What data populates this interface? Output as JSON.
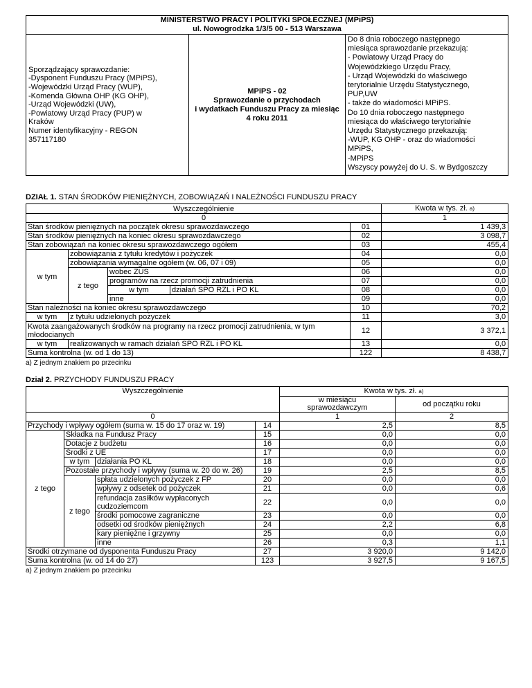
{
  "header_table": {
    "ministry": "MINISTERSTWO PRACY I POLITYKI SPOŁECZNEJ (MPiPS)\nul. Nowogrodzka 1/3/5 00 - 513 Warszawa",
    "preparers": "Sporządzający sprawozdanie:\n-Dysponent Funduszu Pracy (MPiPS),\n-Wojewódzki Urząd Pracy (WUP),\n-Komenda Główna OHP (KG OHP),\n-Urząd Wojewódzki (UW),\n-Powiatowy Urząd Pracy (PUP) w\nKraków\nNumer identyfikacyjny - REGON\n357117180",
    "form_title": "MPiPS - 02\nSprawozdanie o przychodach\ni wydatkach Funduszu Pracy za miesiąc\n4 roku 2011",
    "submission_info": "Do 8 dnia roboczego następnego\nmiesiąca sprawozdanie przekazują:\n- Powiatowy Urząd Pracy do\nWojewódzkiego Urzędu Pracy,\n- Urząd Wojewódzki do właściwego\nterytorialnie Urzędu Statystycznego,\nPUP,UW\n- także do wiadomości MPiPS.\nDo 10 dnia roboczego następnego\nmiesiąca do właściwego terytorialnie\nUrzędu Statystycznego przekazują:\n-WUP, KG OHP - oraz do wiadomości\nMPiPS,\n-MPiPS\nWszyscy powyżej do U. S. w Bydgoszczy"
  },
  "dzial1": {
    "title_prefix": "DZIAŁ 1.",
    "title_rest": " STAN ŚRODKÓW PIENIĘŻNYCH, ZOBOWIĄZAŃ I NALEŻNOŚCI FUNDUSZU PRACY",
    "col_header": "Wyszczególnienie",
    "kwota_header": "Kwota w tys. zł. ",
    "footnote_marker": "a)",
    "col0": "0",
    "col1": "1",
    "w_tym_1": "w tym",
    "z_tego_1": "z tego",
    "w_tym_2": "w tym",
    "w_tym_3": "w tym",
    "w_tym_4": "w tym",
    "footnote": "a) Z jednym znakiem po przecinku",
    "rows": [
      {
        "label": "Stan środków pieniężnych na początek okresu sprawozdawczego",
        "num": "01",
        "val": "1 439,3"
      },
      {
        "label": "Stan środków pieniężnych na koniec okresu sprawozdawczego",
        "num": "02",
        "val": "3 098,7"
      },
      {
        "label": "Stan zobowiązań na koniec okresu sprawozdawczego ogółem",
        "num": "03",
        "val": "455,4"
      },
      {
        "label": "zobowiązania z tytułu kredytów i pożyczek",
        "num": "04",
        "val": "0,0"
      },
      {
        "label": "zobowiązania wymagalne ogółem (w. 06, 07 i 09)",
        "num": "05",
        "val": "0,0"
      },
      {
        "label": "wobec ZUS",
        "num": "06",
        "val": "0,0"
      },
      {
        "label": "programów na rzecz promocji zatrudnienia",
        "num": "07",
        "val": "0,0"
      },
      {
        "label": "działań SPO RZL i PO KL",
        "num": "08",
        "val": "0,0"
      },
      {
        "label": "inne",
        "num": "09",
        "val": "0,0"
      },
      {
        "label": "Stan należności na koniec okresu sprawozdawczego",
        "num": "10",
        "val": "70,2"
      },
      {
        "label": "z tytułu udzielonych pożyczek",
        "num": "11",
        "val": "3,0"
      },
      {
        "label": "Kwota zaangażowanych środków na programy na rzecz promocji zatrudnienia, w tym młodocianych",
        "num": "12",
        "val": "3 372,1"
      },
      {
        "label": "realizowanych w ramach działań SPO RZL i PO KL",
        "num": "13",
        "val": "0,0"
      },
      {
        "label": "Suma kontrolna (w. od 1 do 13)",
        "num": "122",
        "val": "8 438,7"
      }
    ]
  },
  "dzial2": {
    "title_prefix": "Dział 2.",
    "title_rest": " PRZYCHODY FUNDUSZU PRACY",
    "col_header": "Wyszczególnienie",
    "kwota_header": "Kwota w tys. zł. ",
    "footnote_marker": "a)",
    "sub_col1": "w miesiącu\nsprawozdawczym",
    "sub_col2": "od początku roku",
    "col0": "0",
    "col1": "1",
    "col2": "2",
    "z_tego_1": "z tego",
    "w_tym_1": "w tym",
    "z_tego_2": "z tego",
    "footnote": "a) Z jednym znakiem po przecinku",
    "rows": [
      {
        "label": "Przychody i wpływy ogółem (suma w. 15 do 17 oraz w. 19)",
        "num": "14",
        "val1": "2,5",
        "val2": "8,5"
      },
      {
        "label": "Składka na Fundusz Pracy",
        "num": "15",
        "val1": "0,0",
        "val2": "0,0"
      },
      {
        "label": "Dotacje z budżetu",
        "num": "16",
        "val1": "0,0",
        "val2": "0,0"
      },
      {
        "label": "Środki z UE",
        "num": "17",
        "val1": "0,0",
        "val2": "0,0"
      },
      {
        "label": "działania PO KL",
        "num": "18",
        "val1": "0,0",
        "val2": "0,0"
      },
      {
        "label": "Pozostałe przychody i wpływy (suma w. 20 do w. 26)",
        "num": "19",
        "val1": "2,5",
        "val2": "8,5"
      },
      {
        "label": "spłata udzielonych pożyczek z FP",
        "num": "20",
        "val1": "0,0",
        "val2": "0,0"
      },
      {
        "label": "wpływy z odsetek od pożyczek",
        "num": "21",
        "val1": "0,0",
        "val2": "0,6"
      },
      {
        "label": "refundacja zasiłków wypłaconych cudzoziemcom",
        "num": "22",
        "val1": "0,0",
        "val2": "0,0"
      },
      {
        "label": "środki pomocowe zagraniczne",
        "num": "23",
        "val1": "0,0",
        "val2": "0,0"
      },
      {
        "label": "odsetki od środków pieniężnych",
        "num": "24",
        "val1": "2,2",
        "val2": "6,8"
      },
      {
        "label": "kary pieniężne i grzywny",
        "num": "25",
        "val1": "0,0",
        "val2": "0,0"
      },
      {
        "label": "inne",
        "num": "26",
        "val1": "0,3",
        "val2": "1,1"
      },
      {
        "label": "Środki otrzymane od dysponenta Funduszu Pracy",
        "num": "27",
        "val1": "3 920,0",
        "val2": "9 142,0"
      },
      {
        "label": "Suma kontrolna (w. od 14 do 27)",
        "num": "123",
        "val1": "3 927,5",
        "val2": "9 167,5"
      }
    ]
  }
}
